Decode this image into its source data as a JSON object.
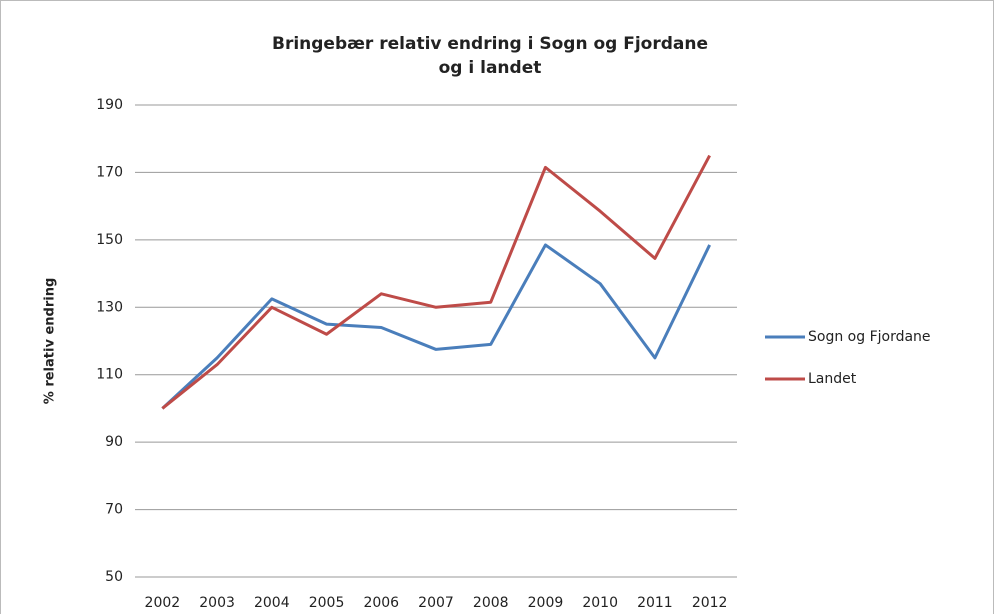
{
  "chart_data": {
    "type": "line",
    "title": "Bringebær relativ endring i Sogn og Fjordane",
    "subtitle": "og i landet",
    "y_label": "% relativ endring",
    "categories": [
      "2002",
      "2003",
      "2004",
      "2005",
      "2006",
      "2007",
      "2008",
      "2009",
      "2010",
      "2011",
      "2012"
    ],
    "series": [
      {
        "name": "Sogn og Fjordane",
        "color": "#4a7ebb",
        "values": [
          100,
          115,
          132.5,
          125,
          124,
          117.5,
          119,
          148.5,
          137,
          115,
          148.5
        ]
      },
      {
        "name": "Landet",
        "color": "#be4b48",
        "values": [
          100,
          113,
          130,
          122,
          134,
          130,
          131.5,
          171.5,
          158.5,
          144.5,
          175
        ]
      }
    ],
    "ylim": [
      50,
      190
    ],
    "yticks": [
      50,
      70,
      90,
      110,
      130,
      150,
      170,
      190
    ],
    "grid": true,
    "legend": "right"
  }
}
